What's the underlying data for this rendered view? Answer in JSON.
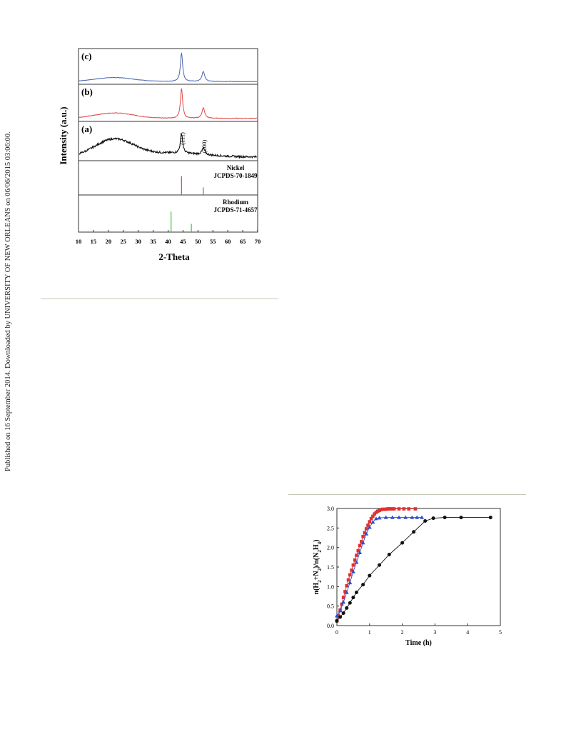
{
  "banner": "Published on 16 September 2014. Downloaded by UNIVERSITY OF NEW ORLEANS on 06/06/2015 03:06:00.",
  "chart_data": [
    {
      "type": "line",
      "ylabel": "Intensity (a.u.)",
      "xlabel": "2-Theta",
      "xlim": [
        10,
        70
      ],
      "x_ticks": [
        "10",
        "15",
        "20",
        "25",
        "30",
        "35",
        "40",
        "45",
        "50",
        "55",
        "60",
        "65",
        "70"
      ],
      "panels": [
        {
          "label": "(c)",
          "color": "#4a63b0",
          "curve": "c"
        },
        {
          "label": "(b)",
          "color": "#e04848",
          "curve": "b"
        },
        {
          "label": "(a)",
          "color": "#111111",
          "curve": "a"
        }
      ],
      "peak_annotations": [
        {
          "text": "(111)",
          "x": 44.5
        },
        {
          "text": "(200)",
          "x": 51.8
        }
      ],
      "references": [
        {
          "name": "Nickel",
          "code": "JCPDS-70-1849",
          "color": "#c040b0",
          "lines": [
            {
              "x": 44.5,
              "h": 0.55
            },
            {
              "x": 51.8,
              "h": 0.22
            }
          ]
        },
        {
          "name": "Rhodium",
          "code": "JCPDS-71-4657",
          "color": "#40c040",
          "lines": [
            {
              "x": 41.0,
              "h": 0.55
            },
            {
              "x": 47.8,
              "h": 0.22
            },
            {
              "x": 69.9,
              "h": 0.12
            }
          ]
        }
      ]
    },
    {
      "type": "line",
      "xlabel": "Time (h)",
      "ylabel": "n(H2+N2)/n(N2H4)",
      "xlim": [
        0,
        5
      ],
      "ylim": [
        0,
        3.0
      ],
      "x_ticks": [
        "0",
        "1",
        "2",
        "3",
        "4",
        "5"
      ],
      "y_ticks": [
        "0.0",
        "0.5",
        "1.0",
        "1.5",
        "2.0",
        "2.5",
        "3.0"
      ],
      "series": [
        {
          "color": "#e03030",
          "marker": "square",
          "x": [
            0,
            0.05,
            0.1,
            0.15,
            0.2,
            0.25,
            0.3,
            0.35,
            0.4,
            0.45,
            0.5,
            0.55,
            0.6,
            0.65,
            0.7,
            0.75,
            0.8,
            0.85,
            0.9,
            0.95,
            1.0,
            1.05,
            1.1,
            1.15,
            1.2,
            1.25,
            1.3,
            1.35,
            1.4,
            1.45,
            1.5,
            1.55,
            1.6,
            1.65,
            1.7,
            1.75,
            1.9,
            2.05,
            2.2,
            2.4
          ],
          "y": [
            0.12,
            0.25,
            0.4,
            0.55,
            0.72,
            0.87,
            1.02,
            1.17,
            1.3,
            1.42,
            1.55,
            1.68,
            1.8,
            1.92,
            2.05,
            2.15,
            2.28,
            2.38,
            2.48,
            2.57,
            2.66,
            2.74,
            2.8,
            2.86,
            2.9,
            2.93,
            2.95,
            2.97,
            2.98,
            2.98,
            2.98,
            2.99,
            2.99,
            2.99,
            2.99,
            2.99,
            2.99,
            2.99,
            2.99,
            2.99
          ]
        },
        {
          "color": "#3050d0",
          "marker": "triangle",
          "x": [
            0,
            0.1,
            0.2,
            0.3,
            0.4,
            0.5,
            0.6,
            0.7,
            0.8,
            0.9,
            1.0,
            1.1,
            1.2,
            1.3,
            1.5,
            1.7,
            1.9,
            2.1,
            2.3,
            2.45,
            2.6
          ],
          "y": [
            0.25,
            0.38,
            0.6,
            0.85,
            1.1,
            1.38,
            1.62,
            1.87,
            2.12,
            2.35,
            2.52,
            2.65,
            2.74,
            2.76,
            2.77,
            2.77,
            2.77,
            2.77,
            2.77,
            2.77,
            2.77
          ]
        },
        {
          "color": "#111111",
          "marker": "circle",
          "x": [
            0,
            0.1,
            0.2,
            0.3,
            0.4,
            0.5,
            0.6,
            0.8,
            1.0,
            1.3,
            1.6,
            2.0,
            2.35,
            2.7,
            2.95,
            3.3,
            3.8,
            4.7
          ],
          "y": [
            0.12,
            0.22,
            0.32,
            0.45,
            0.58,
            0.72,
            0.85,
            1.05,
            1.28,
            1.55,
            1.82,
            2.12,
            2.4,
            2.68,
            2.75,
            2.77,
            2.77,
            2.77
          ]
        }
      ]
    }
  ]
}
